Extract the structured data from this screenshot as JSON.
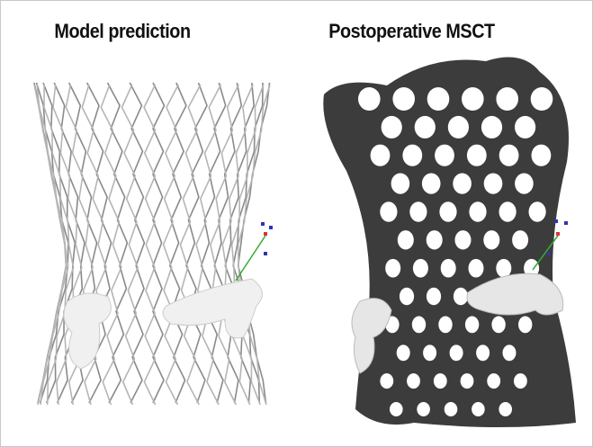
{
  "panels": [
    {
      "title": "Model prediction"
    },
    {
      "title": "Postoperative MSCT"
    }
  ]
}
